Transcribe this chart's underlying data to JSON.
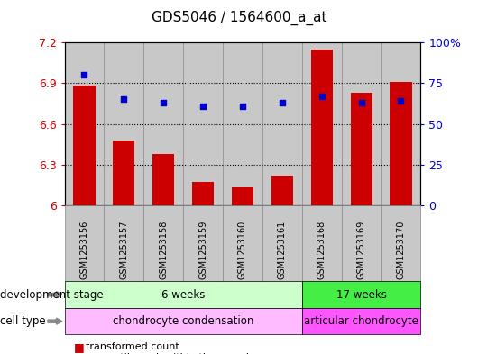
{
  "title": "GDS5046 / 1564600_a_at",
  "samples": [
    "GSM1253156",
    "GSM1253157",
    "GSM1253158",
    "GSM1253159",
    "GSM1253160",
    "GSM1253161",
    "GSM1253168",
    "GSM1253169",
    "GSM1253170"
  ],
  "bar_values": [
    6.88,
    6.48,
    6.38,
    6.17,
    6.13,
    6.22,
    7.15,
    6.83,
    6.91
  ],
  "bar_base": 6.0,
  "dot_values_pct": [
    80,
    65,
    63,
    61,
    61,
    63,
    67,
    63,
    64
  ],
  "ylim_left": [
    6.0,
    7.2
  ],
  "ylim_right": [
    0,
    100
  ],
  "yticks_left": [
    6.0,
    6.3,
    6.6,
    6.9,
    7.2
  ],
  "yticks_right": [
    0,
    25,
    50,
    75,
    100
  ],
  "ytick_labels_left": [
    "6",
    "6.3",
    "6.6",
    "6.9",
    "7.2"
  ],
  "ytick_labels_right": [
    "0",
    "25",
    "50",
    "75",
    "100%"
  ],
  "hlines": [
    6.3,
    6.6,
    6.9
  ],
  "bar_color": "#cc0000",
  "dot_color": "#0000cc",
  "bar_width": 0.55,
  "dev_stage_groups": [
    {
      "label": "6 weeks",
      "start": 0,
      "end": 5,
      "color": "#ccffcc"
    },
    {
      "label": "17 weeks",
      "start": 6,
      "end": 8,
      "color": "#44ee44"
    }
  ],
  "cell_type_groups": [
    {
      "label": "chondrocyte condensation",
      "start": 0,
      "end": 5,
      "color": "#ffbbff"
    },
    {
      "label": "articular chondrocyte",
      "start": 6,
      "end": 8,
      "color": "#ff55ff"
    }
  ],
  "dev_stage_label": "development stage",
  "cell_type_label": "cell type",
  "legend_bar_label": "transformed count",
  "legend_dot_label": "percentile rank within the sample",
  "bg_color": "#ffffff",
  "tick_color_left": "#cc0000",
  "tick_color_right": "#0000cc",
  "sample_bg_color": "#c8c8c8"
}
